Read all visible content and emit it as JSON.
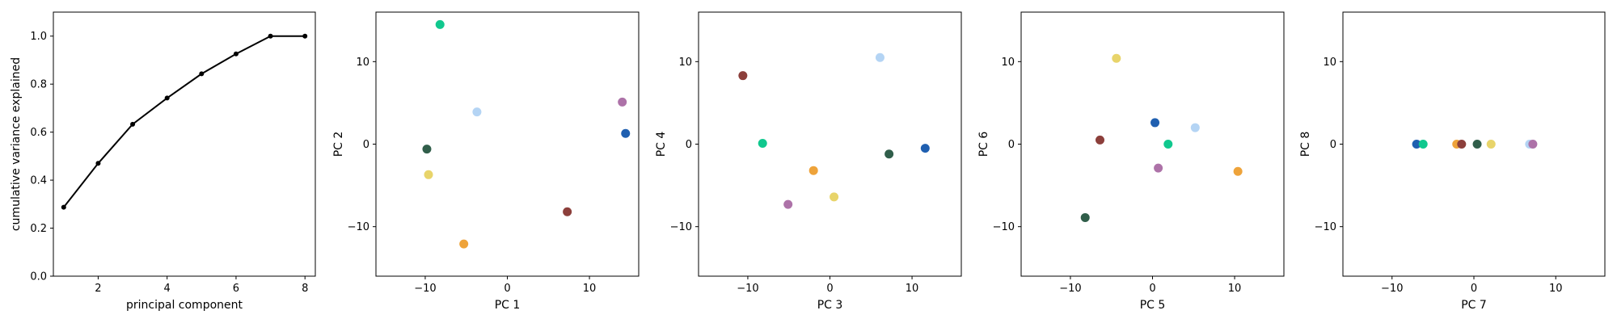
{
  "chart_data": [
    {
      "type": "line",
      "xlabel": "principal component",
      "ylabel": "cumulative variance explained",
      "xlim": [
        0.7,
        8.3
      ],
      "ylim": [
        0,
        1.1
      ],
      "xticks": [
        2,
        4,
        6,
        8
      ],
      "yticks": [
        0.0,
        0.2,
        0.4,
        0.6,
        0.8,
        1.0
      ],
      "xtick_labels": [
        "2",
        "4",
        "6",
        "8"
      ],
      "ytick_labels": [
        "0.0",
        "0.2",
        "0.4",
        "0.6",
        "0.8",
        "1.0"
      ],
      "grid": false,
      "series": [
        {
          "color": "#000000",
          "x": [
            1,
            2,
            3,
            4,
            5,
            6,
            7,
            8
          ],
          "y": [
            0.287,
            0.47,
            0.633,
            0.742,
            0.843,
            0.926,
            1.0,
            1.0
          ]
        }
      ]
    },
    {
      "type": "scatter",
      "xlabel": "PC 1",
      "ylabel": "PC 2",
      "xlim": [
        -16,
        16
      ],
      "ylim": [
        -16,
        16
      ],
      "xticks": [
        -10,
        0,
        10
      ],
      "yticks": [
        -10,
        0,
        10
      ],
      "xtick_labels": [
        "−10",
        "0",
        "10"
      ],
      "ytick_labels": [
        "−10",
        "0",
        "10"
      ],
      "grid": false,
      "points": [
        {
          "x": -8.2,
          "y": 14.5,
          "color": "#10c88e"
        },
        {
          "x": -3.7,
          "y": 3.9,
          "color": "#b4d4f4"
        },
        {
          "x": 14.0,
          "y": 5.1,
          "color": "#ad72a8"
        },
        {
          "x": 14.4,
          "y": 1.3,
          "color": "#1f5fb0"
        },
        {
          "x": -9.8,
          "y": -0.6,
          "color": "#305e4a"
        },
        {
          "x": -9.6,
          "y": -3.7,
          "color": "#e8d46a"
        },
        {
          "x": 7.3,
          "y": -8.2,
          "color": "#8c3f3b"
        },
        {
          "x": -5.3,
          "y": -12.1,
          "color": "#eea33a"
        }
      ]
    },
    {
      "type": "scatter",
      "xlabel": "PC 3",
      "ylabel": "PC 4",
      "xlim": [
        -16,
        16
      ],
      "ylim": [
        -16,
        16
      ],
      "xticks": [
        -10,
        0,
        10
      ],
      "yticks": [
        -10,
        0,
        10
      ],
      "xtick_labels": [
        "−10",
        "0",
        "10"
      ],
      "ytick_labels": [
        "−10",
        "0",
        "10"
      ],
      "grid": false,
      "points": [
        {
          "x": -10.6,
          "y": 8.3,
          "color": "#8c3f3b"
        },
        {
          "x": 6.1,
          "y": 10.5,
          "color": "#b4d4f4"
        },
        {
          "x": -8.2,
          "y": 0.1,
          "color": "#10c88e"
        },
        {
          "x": 11.6,
          "y": -0.5,
          "color": "#1f5fb0"
        },
        {
          "x": 7.2,
          "y": -1.2,
          "color": "#305e4a"
        },
        {
          "x": -2.0,
          "y": -3.2,
          "color": "#eea33a"
        },
        {
          "x": 0.5,
          "y": -6.4,
          "color": "#e8d46a"
        },
        {
          "x": -5.1,
          "y": -7.3,
          "color": "#ad72a8"
        }
      ]
    },
    {
      "type": "scatter",
      "xlabel": "PC 5",
      "ylabel": "PC 6",
      "xlim": [
        -16,
        16
      ],
      "ylim": [
        -16,
        16
      ],
      "xticks": [
        -10,
        0,
        10
      ],
      "yticks": [
        -10,
        0,
        10
      ],
      "xtick_labels": [
        "−10",
        "0",
        "10"
      ],
      "ytick_labels": [
        "−10",
        "0",
        "10"
      ],
      "grid": false,
      "points": [
        {
          "x": -4.4,
          "y": 10.4,
          "color": "#e8d46a"
        },
        {
          "x": 0.3,
          "y": 2.6,
          "color": "#1f5fb0"
        },
        {
          "x": 5.2,
          "y": 2.0,
          "color": "#b4d4f4"
        },
        {
          "x": -6.4,
          "y": 0.5,
          "color": "#8c3f3b"
        },
        {
          "x": 1.9,
          "y": 0.0,
          "color": "#10c88e"
        },
        {
          "x": 0.7,
          "y": -2.9,
          "color": "#ad72a8"
        },
        {
          "x": 10.4,
          "y": -3.3,
          "color": "#eea33a"
        },
        {
          "x": -8.2,
          "y": -8.9,
          "color": "#305e4a"
        }
      ]
    },
    {
      "type": "scatter",
      "xlabel": "PC 7",
      "ylabel": "PC 8",
      "xlim": [
        -16,
        16
      ],
      "ylim": [
        -16,
        16
      ],
      "xticks": [
        -10,
        0,
        10
      ],
      "yticks": [
        -10,
        0,
        10
      ],
      "xtick_labels": [
        "−10",
        "0",
        "10"
      ],
      "ytick_labels": [
        "−10",
        "0",
        "10"
      ],
      "grid": false,
      "points": [
        {
          "x": -7.0,
          "y": 0.0,
          "color": "#1f5fb0"
        },
        {
          "x": -6.2,
          "y": 0.0,
          "color": "#10c88e"
        },
        {
          "x": -2.1,
          "y": 0.0,
          "color": "#eea33a"
        },
        {
          "x": -1.5,
          "y": 0.0,
          "color": "#8c3f3b"
        },
        {
          "x": 0.4,
          "y": 0.0,
          "color": "#305e4a"
        },
        {
          "x": 2.1,
          "y": 0.0,
          "color": "#e8d46a"
        },
        {
          "x": 6.8,
          "y": 0.0,
          "color": "#b4d4f4"
        },
        {
          "x": 7.2,
          "y": 0.0,
          "color": "#ad72a8"
        }
      ]
    }
  ]
}
